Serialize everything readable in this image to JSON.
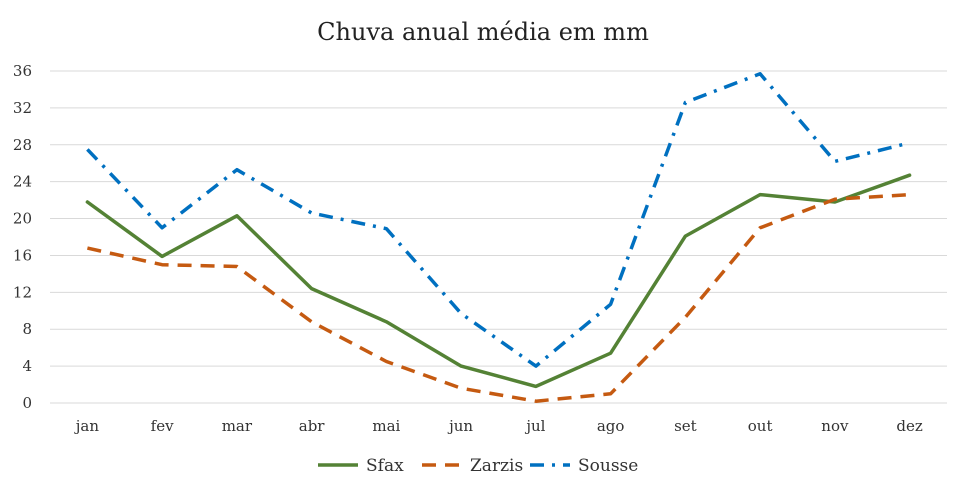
{
  "chart_data": {
    "type": "line",
    "title": "Chuva anual média em mm",
    "xlabel": "",
    "ylabel": "",
    "categories": [
      "jan",
      "fev",
      "mar",
      "abr",
      "mai",
      "jun",
      "jul",
      "ago",
      "set",
      "out",
      "nov",
      "dez"
    ],
    "ylim": [
      0,
      36
    ],
    "yticks": [
      0,
      4,
      8,
      12,
      16,
      20,
      24,
      28,
      32,
      36
    ],
    "grid": true,
    "legend_position": "bottom",
    "series": [
      {
        "name": "Sfax",
        "color": "#548235",
        "dash": "solid",
        "values": [
          21.8,
          15.9,
          20.3,
          12.4,
          8.8,
          4.0,
          1.8,
          5.4,
          18.1,
          22.6,
          21.8,
          24.7
        ]
      },
      {
        "name": "Zarzis",
        "color": "#c55a11",
        "dash": "dashed",
        "values": [
          16.8,
          15.0,
          14.8,
          8.8,
          4.5,
          1.6,
          0.2,
          1.0,
          9.3,
          19.0,
          22.1,
          22.6
        ]
      },
      {
        "name": "Sousse",
        "color": "#0070c0",
        "dash": "dash-dot",
        "values": [
          27.5,
          19.0,
          25.3,
          20.6,
          18.9,
          9.7,
          4.0,
          10.7,
          32.6,
          35.7,
          26.2,
          28.2
        ]
      }
    ]
  }
}
